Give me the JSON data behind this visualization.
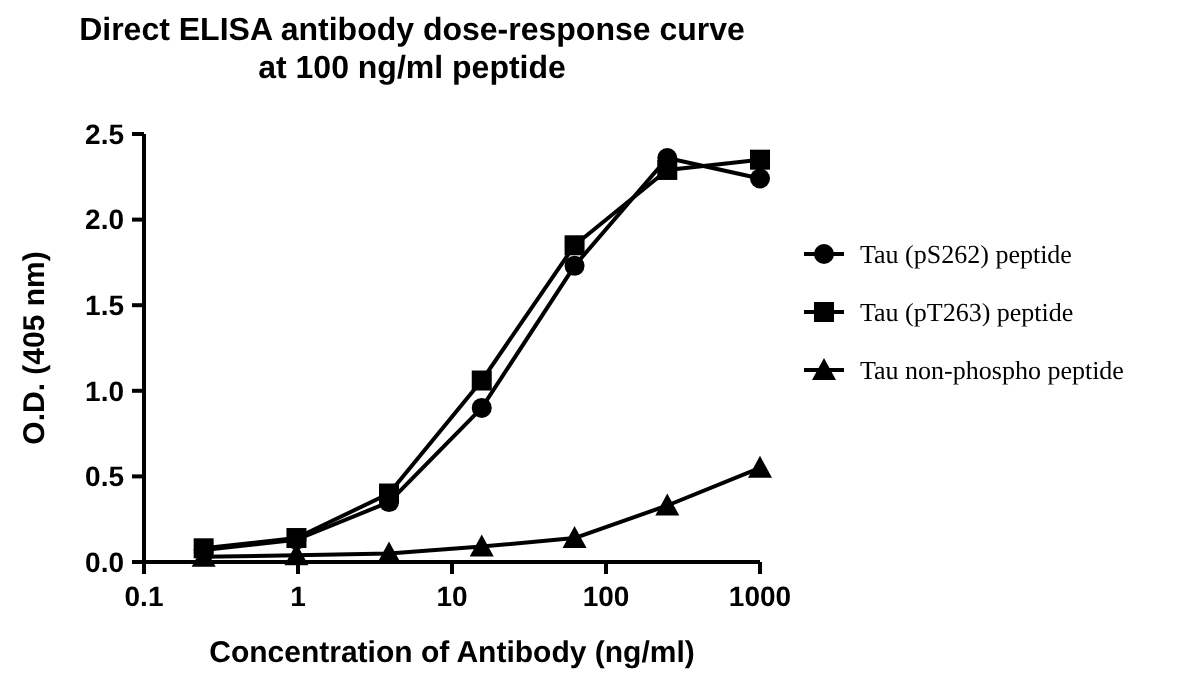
{
  "chart_data": {
    "type": "line",
    "title": "Direct ELISA antibody dose-response curve\nat 100 ng/ml peptide",
    "xlabel": "Concentration of Antibody (ng/ml)",
    "ylabel": "O.D. (405 nm)",
    "x": [
      0.244,
      0.977,
      3.9,
      15.6,
      62.5,
      250,
      1000
    ],
    "series": [
      {
        "name": "Tau (pS262) peptide",
        "color": "#000000",
        "marker": "circle",
        "values": [
          0.07,
          0.13,
          0.35,
          0.9,
          1.73,
          2.36,
          2.24
        ]
      },
      {
        "name": "Tau (pT263) peptide",
        "color": "#000000",
        "marker": "square",
        "values": [
          0.08,
          0.14,
          0.4,
          1.06,
          1.85,
          2.29,
          2.35
        ]
      },
      {
        "name": "Tau non-phospho peptide",
        "color": "#000000",
        "marker": "triangle",
        "values": [
          0.03,
          0.04,
          0.05,
          0.09,
          0.14,
          0.33,
          0.55
        ]
      }
    ],
    "log": "x",
    "xlim": [
      0.1,
      1000
    ],
    "xticks": [
      0.1,
      1,
      10,
      100,
      1000
    ],
    "ylim": [
      0,
      2.5
    ],
    "yticks": [
      {
        "value": 0,
        "label": "0.0"
      },
      0.5,
      {
        "value": 1,
        "label": "1.0"
      },
      1.5,
      {
        "value": 2,
        "label": "2.0"
      },
      2.5
    ],
    "grid": false,
    "legend": "right",
    "line_style": "solid"
  }
}
